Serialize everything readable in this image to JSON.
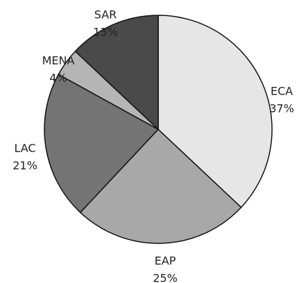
{
  "chart_data": {
    "type": "pie",
    "categories": [
      "ECA",
      "EAP",
      "LAC",
      "MENA",
      "SAR"
    ],
    "values": [
      37,
      25,
      21,
      4,
      13
    ],
    "value_labels": [
      "37%",
      "25%",
      "21%",
      "4%",
      "13%"
    ],
    "colors": [
      "#e6e6e6",
      "#a8a8a8",
      "#747474",
      "#b5b5b5",
      "#4a4a4a"
    ]
  }
}
